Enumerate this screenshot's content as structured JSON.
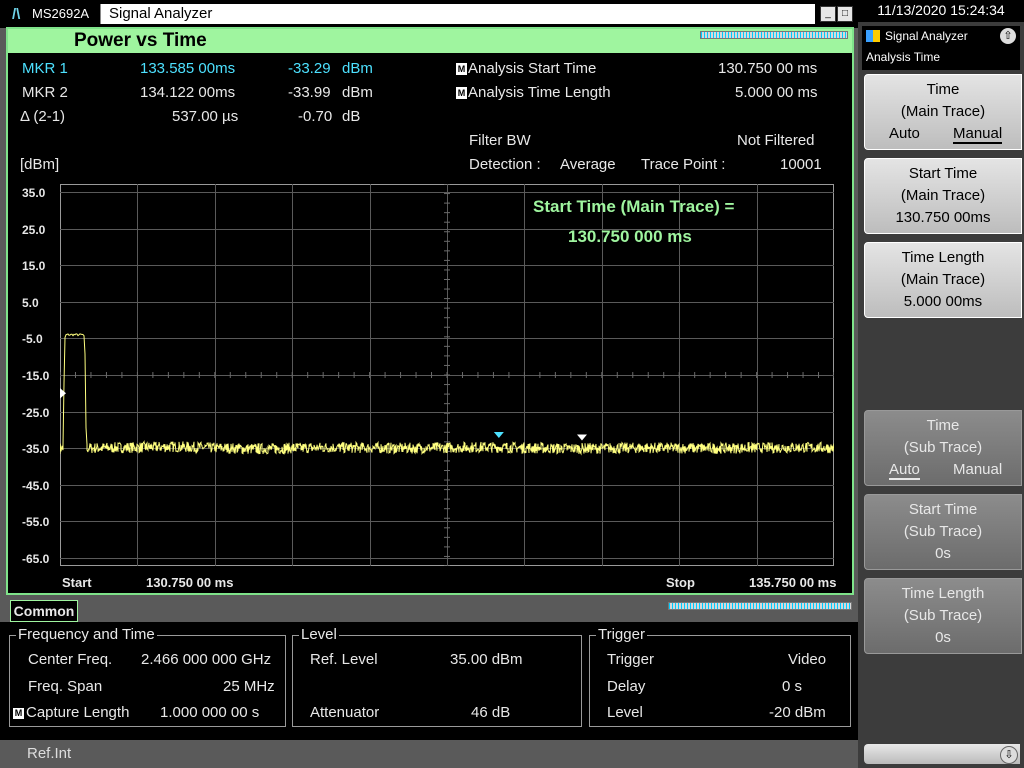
{
  "titlebar": {
    "logo": "/\\",
    "model": "MS2692A",
    "app_title": "Signal Analyzer",
    "min_btn": "_",
    "max_btn": "□"
  },
  "clock": "11/13/2020 15:24:34",
  "panel": {
    "title": "Power vs Time",
    "markers": [
      {
        "label": "MKR 1",
        "time": "133.585 00ms",
        "level": "-33.29",
        "unit": "dBm"
      },
      {
        "label": "MKR 2",
        "time": "134.122 00ms",
        "level": "-33.99",
        "unit": "dBm"
      },
      {
        "label": "Δ (2-1)",
        "time": "537.00 µs",
        "level": "-0.70",
        "unit": "dB"
      }
    ],
    "analysis": {
      "start_label": "Analysis Start Time",
      "start_value": "130.750 00 ms",
      "length_label": "Analysis Time Length",
      "length_value": "5.000 00 ms",
      "mark": "M"
    },
    "filter_label": "Filter BW",
    "filter_value": "Not Filtered",
    "detection_label": "Detection :",
    "detection_value": "Average",
    "trace_point_label": "Trace Point :",
    "trace_point_value": "10001",
    "unit_label": "[dBm]",
    "entry_text_1": "Start Time (Main Trace) =",
    "entry_text_2": "130.750 000 ms",
    "start_label": "Start",
    "start_value": "130.750 00 ms",
    "stop_label": "Stop",
    "stop_value": "135.750 00 ms"
  },
  "chart_data": {
    "type": "line",
    "title": "Power vs Time",
    "ylabel": "[dBm]",
    "yticks": [
      "35.0",
      "25.0",
      "15.0",
      "5.0",
      "-5.0",
      "-15.0",
      "-25.0",
      "-35.0",
      "-45.0",
      "-55.0",
      "-65.0"
    ],
    "ylim": [
      -65,
      35
    ],
    "xlim": [
      130.75,
      135.75
    ],
    "grid": true,
    "trace_color": "#ffff80",
    "series": [
      {
        "x": [
          130.75,
          130.77,
          130.78,
          130.79,
          130.9,
          130.91,
          130.92,
          131.5,
          132.0,
          132.5,
          133.0,
          133.5,
          134.0,
          134.5,
          135.0,
          135.5,
          135.75
        ],
        "values": [
          -35,
          -35,
          -5,
          -4,
          -4,
          -5,
          -35,
          -34.6,
          -35.2,
          -34.8,
          -35.0,
          -34.7,
          -35.1,
          -34.9,
          -35.0,
          -34.8,
          -34.9
        ]
      }
    ],
    "markers": [
      {
        "x": 133.585,
        "y": -33.29
      },
      {
        "x": 134.122,
        "y": -33.99
      }
    ]
  },
  "common": {
    "tag": "Common",
    "freq_group": {
      "title": "Frequency and Time",
      "center_label": "Center Freq.",
      "center_value": "2.466 000 000 GHz",
      "span_label": "Freq. Span",
      "span_value": "25 MHz",
      "capture_mark": "M",
      "capture_label": "Capture Length",
      "capture_value": "1.000 000 00 s"
    },
    "level_group": {
      "title": "Level",
      "ref_label": "Ref. Level",
      "ref_value": "35.00 dBm",
      "att_label": "Attenuator",
      "att_value": "46 dB"
    },
    "trigger_group": {
      "title": "Trigger",
      "trigger_label": "Trigger",
      "trigger_value": "Video",
      "delay_label": "Delay",
      "delay_value": "0 s",
      "level_label": "Level",
      "level_value": "-20 dBm"
    }
  },
  "refbar": {
    "text": "Ref.Int"
  },
  "softkeys": {
    "header_app": "Signal Analyzer",
    "header_menu": "Analysis Time",
    "keys": [
      {
        "l1": "Time",
        "l2": "(Main Trace)",
        "opt_a": "Auto",
        "opt_b": "Manual"
      },
      {
        "l1": "Start Time",
        "l2": "(Main Trace)",
        "l3": "130.750 00ms"
      },
      {
        "l1": "Time Length",
        "l2": "(Main Trace)",
        "l3": "5.000 00ms"
      },
      {
        "l1": "Time",
        "l2": "(Sub Trace)",
        "opt_a": "Auto",
        "opt_b": "Manual"
      },
      {
        "l1": "Start Time",
        "l2": "(Sub Trace)",
        "l3": "0s"
      },
      {
        "l1": "Time Length",
        "l2": "(Sub Trace)",
        "l3": "0s"
      }
    ]
  }
}
